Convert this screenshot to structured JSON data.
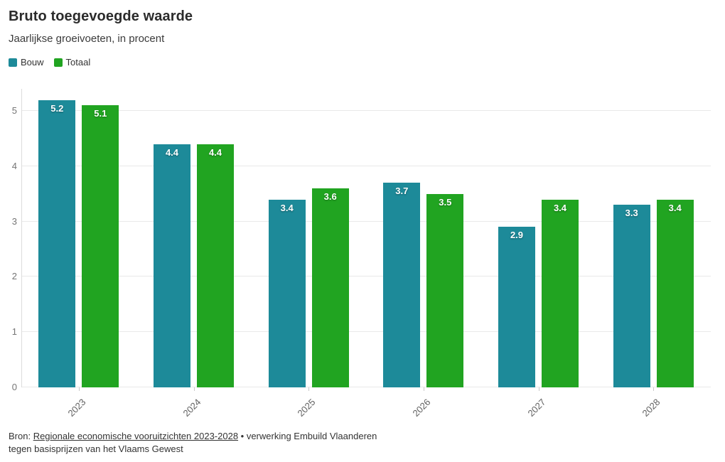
{
  "header": {
    "title": "Bruto toegevoegde waarde",
    "subtitle": "Jaarlijkse groeivoeten, in procent"
  },
  "legend": [
    {
      "label": "Bouw",
      "color": "#1d8a99"
    },
    {
      "label": "Totaal",
      "color": "#21a421"
    }
  ],
  "chart_data": {
    "type": "bar",
    "title": "Bruto toegevoegde waarde",
    "subtitle": "Jaarlijkse groeivoeten, in procent",
    "categories": [
      "2023",
      "2024",
      "2025",
      "2026",
      "2027",
      "2028"
    ],
    "series": [
      {
        "name": "Bouw",
        "color": "#1d8a99",
        "values": [
          5.2,
          4.4,
          3.4,
          3.7,
          2.9,
          3.3
        ]
      },
      {
        "name": "Totaal",
        "color": "#21a421",
        "values": [
          5.1,
          4.4,
          3.6,
          3.5,
          3.4,
          3.4
        ]
      }
    ],
    "xlabel": "",
    "ylabel": "",
    "ylim": [
      0,
      5.4
    ],
    "yticks": [
      0,
      1,
      2,
      3,
      4,
      5
    ],
    "grid": true,
    "legend_position": "top-left",
    "value_labels": true
  },
  "footer": {
    "prefix": "Bron: ",
    "link": "Regionale economische vooruitzichten 2023-2028",
    "suffix": " • verwerking Embuild Vlaanderen",
    "line2": "tegen basisprijzen van het Vlaams Gewest"
  }
}
